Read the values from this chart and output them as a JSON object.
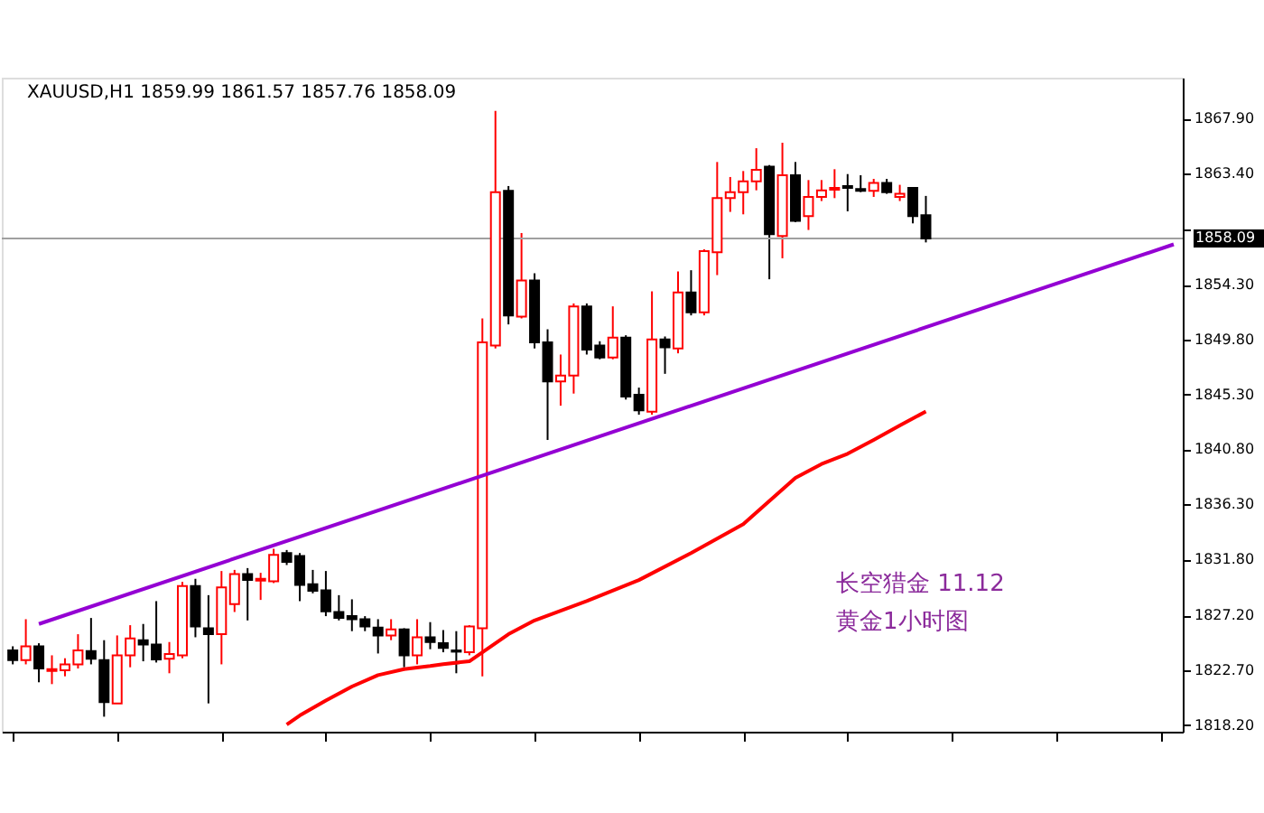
{
  "chart_data": {
    "type": "candlestick",
    "title": "XAUUSD,H1  1859.99 1861.57 1857.76 1858.09",
    "categories": [
      null,
      null,
      null,
      null,
      null,
      null,
      null,
      null,
      null,
      null,
      null,
      null,
      null,
      null,
      null,
      null,
      null,
      null,
      null,
      null,
      null,
      null,
      null,
      null,
      null,
      null,
      null,
      null,
      null,
      null,
      null,
      null,
      null,
      null,
      null,
      null,
      null,
      null,
      null,
      null,
      null,
      null,
      null,
      null,
      null,
      null,
      null,
      null,
      null,
      null,
      null,
      null,
      null,
      null,
      null,
      null,
      null,
      null,
      null,
      null,
      null,
      null,
      null,
      null,
      null,
      null,
      null,
      null,
      null,
      null,
      null,
      null,
      null,
      null,
      null,
      null,
      null,
      null,
      null,
      null,
      null,
      null,
      null,
      null,
      null,
      null,
      null,
      null,
      null,
      null
    ],
    "ohlc": [
      [
        1824.32,
        1824.66,
        1823.18,
        1823.53
      ],
      [
        1823.53,
        1826.88,
        1823.18,
        1824.66
      ],
      [
        1824.66,
        1824.91,
        1821.71,
        1822.84
      ],
      [
        1822.64,
        1823.92,
        1821.56,
        1822.79
      ],
      [
        1822.69,
        1823.68,
        1822.2,
        1823.18
      ],
      [
        1823.18,
        1825.65,
        1822.84,
        1824.32
      ],
      [
        1824.27,
        1826.98,
        1823.18,
        1823.63
      ],
      [
        1823.53,
        1825.16,
        1818.89,
        1820.08
      ],
      [
        1819.98,
        1825.55,
        1819.98,
        1823.92
      ],
      [
        1823.92,
        1826.39,
        1822.94,
        1825.3
      ],
      [
        1825.16,
        1826.49,
        1823.43,
        1824.81
      ],
      [
        1824.81,
        1828.36,
        1823.33,
        1823.58
      ],
      [
        1823.63,
        1825.01,
        1822.45,
        1824.02
      ],
      [
        1823.92,
        1829.94,
        1823.68,
        1829.59
      ],
      [
        1829.59,
        1830.19,
        1825.4,
        1826.29
      ],
      [
        1826.14,
        1828.85,
        1819.98,
        1825.65
      ],
      [
        1825.65,
        1830.83,
        1823.18,
        1829.49
      ],
      [
        1828.12,
        1830.92,
        1827.47,
        1830.58
      ],
      [
        1830.58,
        1831.07,
        1826.78,
        1830.09
      ],
      [
        1830.04,
        1830.68,
        1828.46,
        1830.19
      ],
      [
        1829.99,
        1832.65,
        1829.84,
        1832.16
      ],
      [
        1832.3,
        1832.55,
        1831.32,
        1831.57
      ],
      [
        1832.06,
        1832.3,
        1828.36,
        1829.69
      ],
      [
        1829.74,
        1830.92,
        1829.0,
        1829.2
      ],
      [
        1829.25,
        1830.83,
        1827.13,
        1827.52
      ],
      [
        1827.47,
        1828.85,
        1826.78,
        1826.98
      ],
      [
        1827.13,
        1828.51,
        1825.9,
        1826.88
      ],
      [
        1826.88,
        1827.13,
        1825.9,
        1826.29
      ],
      [
        1826.19,
        1826.88,
        1824.07,
        1825.55
      ],
      [
        1825.55,
        1826.88,
        1825.16,
        1826.04
      ],
      [
        1826.04,
        1826.14,
        1822.94,
        1823.92
      ],
      [
        1823.92,
        1826.88,
        1823.18,
        1825.4
      ],
      [
        1825.4,
        1826.64,
        1824.42,
        1825.01
      ],
      [
        1824.91,
        1825.99,
        1824.17,
        1824.52
      ],
      [
        1824.32,
        1825.9,
        1822.45,
        1824.22
      ],
      [
        1824.17,
        1826.39,
        1823.92,
        1826.29
      ],
      [
        1826.14,
        1851.53,
        1822.2,
        1849.56
      ],
      [
        1849.31,
        1868.54,
        1849.07,
        1861.88
      ],
      [
        1861.98,
        1862.38,
        1851.04,
        1851.78
      ],
      [
        1851.68,
        1858.53,
        1851.53,
        1854.64
      ],
      [
        1854.64,
        1855.23,
        1849.07,
        1849.56
      ],
      [
        1849.56,
        1850.64,
        1841.57,
        1846.36
      ],
      [
        1846.36,
        1848.57,
        1844.38,
        1846.85
      ],
      [
        1846.85,
        1852.76,
        1845.37,
        1852.52
      ],
      [
        1852.52,
        1852.76,
        1848.57,
        1848.97
      ],
      [
        1849.31,
        1849.66,
        1848.18,
        1848.33
      ],
      [
        1848.33,
        1852.52,
        1848.18,
        1849.95
      ],
      [
        1849.95,
        1850.15,
        1844.88,
        1845.12
      ],
      [
        1845.27,
        1845.86,
        1843.64,
        1843.99
      ],
      [
        1843.89,
        1853.75,
        1843.64,
        1849.81
      ],
      [
        1849.81,
        1850.05,
        1846.99,
        1849.17
      ],
      [
        1849.07,
        1855.38,
        1848.67,
        1853.65
      ],
      [
        1853.65,
        1855.48,
        1851.78,
        1852.03
      ],
      [
        1852.03,
        1857.2,
        1851.78,
        1857.05
      ],
      [
        1856.96,
        1864.35,
        1855.08,
        1861.39
      ],
      [
        1861.39,
        1863.12,
        1860.26,
        1861.88
      ],
      [
        1861.88,
        1863.61,
        1860.06,
        1862.77
      ],
      [
        1862.77,
        1865.48,
        1862.03,
        1863.71
      ],
      [
        1863.96,
        1864.1,
        1854.74,
        1858.43
      ],
      [
        1858.29,
        1865.93,
        1856.46,
        1863.27
      ],
      [
        1863.27,
        1864.35,
        1859.42,
        1859.52
      ],
      [
        1859.91,
        1862.87,
        1858.78,
        1861.49
      ],
      [
        1861.49,
        1862.87,
        1861.15,
        1862.03
      ],
      [
        1862.08,
        1863.76,
        1861.39,
        1862.23
      ],
      [
        1862.38,
        1863.36,
        1860.31,
        1862.23
      ],
      [
        1862.13,
        1863.27,
        1861.88,
        1861.98
      ],
      [
        1861.98,
        1862.97,
        1861.49,
        1862.63
      ],
      [
        1862.63,
        1862.97,
        1861.74,
        1861.88
      ],
      [
        1861.49,
        1862.48,
        1861.15,
        1861.74
      ],
      [
        1862.23,
        1862.28,
        1859.32,
        1859.91
      ],
      [
        1859.99,
        1861.57,
        1857.76,
        1858.09
      ],
      null,
      null,
      null,
      null,
      null,
      null,
      null,
      null,
      null,
      null,
      null,
      null,
      null,
      null,
      null,
      null,
      null,
      null,
      null
    ],
    "colors": [
      "#000000",
      "#ff0000",
      "#000000",
      "#ff0000",
      "#ff0000",
      "#ff0000",
      "#000000",
      "#000000",
      "#ff0000",
      "#ff0000",
      "#000000",
      "#000000",
      "#ff0000",
      "#ff0000",
      "#000000",
      "#000000",
      "#ff0000",
      "#ff0000",
      "#000000",
      "#ff0000",
      "#ff0000",
      "#000000",
      "#000000",
      "#000000",
      "#000000",
      "#000000",
      "#000000",
      "#000000",
      "#000000",
      "#ff0000",
      "#000000",
      "#ff0000",
      "#000000",
      "#000000",
      "#000000",
      "#ff0000",
      "#ff0000",
      "#ff0000",
      "#000000",
      "#ff0000",
      "#000000",
      "#000000",
      "#ff0000",
      "#ff0000",
      "#000000",
      "#000000",
      "#ff0000",
      "#000000",
      "#000000",
      "#ff0000",
      "#000000",
      "#ff0000",
      "#000000",
      "#ff0000",
      "#ff0000",
      "#ff0000",
      "#ff0000",
      "#ff0000",
      "#000000",
      "#ff0000",
      "#000000",
      "#ff0000",
      "#ff0000",
      "#ff0000",
      "#000000",
      "#000000",
      "#ff0000",
      "#000000",
      "#ff0000",
      "#000000",
      "#000000",
      null,
      null,
      null,
      null,
      null,
      null,
      null,
      null,
      null,
      null,
      null,
      null,
      null,
      null,
      null,
      null,
      null,
      null,
      null
    ],
    "series": [
      {
        "type": "line",
        "color": "#9400d3",
        "values": [
          null,
          null,
          1826.49,
          null,
          null,
          null,
          null,
          null,
          null,
          null,
          null,
          null,
          null,
          null,
          null,
          null,
          null,
          null,
          null,
          null,
          null,
          null,
          null,
          null,
          null,
          null,
          null,
          null,
          null,
          null,
          null,
          null,
          null,
          null,
          null,
          null,
          null,
          null,
          null,
          null,
          null,
          null,
          null,
          null,
          null,
          null,
          null,
          null,
          null,
          null,
          null,
          null,
          null,
          null,
          null,
          null,
          null,
          null,
          null,
          null,
          null,
          null,
          null,
          null,
          null,
          null,
          null,
          null,
          null,
          null,
          null,
          null,
          null,
          null,
          null,
          null,
          null,
          null,
          null,
          null,
          null,
          null,
          null,
          null,
          null,
          null,
          null,
          null,
          null,
          1857.6
        ]
      },
      {
        "type": "line",
        "color": "#ff0000",
        "values": [
          null,
          null,
          null,
          null,
          null,
          null,
          null,
          null,
          null,
          null,
          null,
          null,
          null,
          null,
          null,
          null,
          null,
          null,
          null,
          null,
          null,
          1818.25,
          1818.99,
          null,
          1820.22,
          null,
          1821.36,
          null,
          1822.3,
          null,
          1822.79,
          null,
          1823.04,
          1823.2,
          null,
          1823.43,
          1824.17,
          null,
          1825.65,
          null,
          1826.78,
          null,
          null,
          null,
          1828.36,
          null,
          null,
          null,
          1830.09,
          null,
          null,
          null,
          1832.3,
          null,
          null,
          null,
          1834.67,
          null,
          null,
          null,
          1838.47,
          null,
          1839.6,
          null,
          1840.44,
          null,
          1841.57,
          null,
          1842.76,
          null,
          1843.9,
          null,
          null,
          null,
          null,
          null,
          null,
          null,
          null,
          null,
          null,
          null,
          null,
          null,
          null,
          null,
          null,
          null,
          null,
          null
        ]
      }
    ],
    "ylim": [
      1817.66,
      1871.26
    ],
    "yticks": [
      {
        "value": 1867.9,
        "label": "1867.90"
      },
      {
        "value": 1863.4,
        "label": "1863.40"
      },
      {
        "value": 1858.8,
        "label": null
      },
      {
        "value": 1854.3,
        "label": "1854.30"
      },
      {
        "value": 1849.8,
        "label": "1849.80"
      },
      {
        "value": 1845.3,
        "label": "1845.30"
      },
      {
        "value": 1840.8,
        "label": "1840.80"
      },
      {
        "value": 1836.3,
        "label": "1836.30"
      },
      {
        "value": 1831.8,
        "label": "1831.80"
      },
      {
        "value": 1827.2,
        "label": "1827.20"
      },
      {
        "value": 1822.7,
        "label": "1822.70"
      },
      {
        "value": 1818.2,
        "label": "1818.20"
      }
    ],
    "ref_lines": [
      {
        "axis": "y",
        "value": 1858.09,
        "label": "1858.09",
        "color": "#a0a0a0"
      }
    ],
    "annotations": [
      "长空猎金 11.12",
      "黄金1小时图"
    ],
    "tick_labels": "y",
    "grid": false
  }
}
